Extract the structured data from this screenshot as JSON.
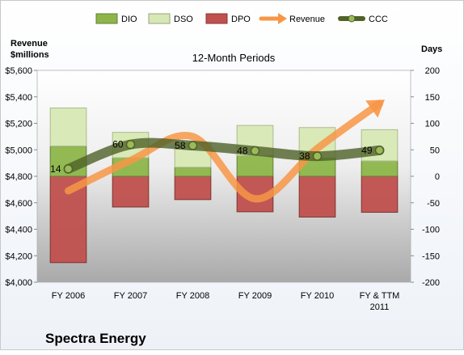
{
  "chart_data": {
    "type": "bar",
    "title": "12-Month Periods",
    "company": "Spectra Energy",
    "categories": [
      [
        "FY 2006"
      ],
      [
        "FY 2007"
      ],
      [
        "FY 2008"
      ],
      [
        "FY 2009"
      ],
      [
        "FY 2010"
      ],
      [
        "FY & TTM",
        "2011"
      ]
    ],
    "left_axis": {
      "label": [
        "Revenue",
        "$millions"
      ],
      "ylim": [
        4000,
        5600
      ],
      "ticks": [
        4000,
        4200,
        4400,
        4600,
        4800,
        5000,
        5200,
        5400,
        5600
      ],
      "tick_labels": [
        "$4,000",
        "$4,200",
        "$4,400",
        "$4,600",
        "$4,800",
        "$5,000",
        "$5,200",
        "$5,400",
        "$5,600"
      ]
    },
    "right_axis": {
      "label": "Days",
      "ylim": [
        -200,
        200
      ],
      "ticks": [
        -200,
        -150,
        -100,
        -50,
        0,
        50,
        100,
        150,
        200
      ],
      "tick_labels": [
        "-200",
        "-150",
        "-100",
        "-50",
        "0",
        "50",
        "100",
        "150",
        "200"
      ]
    },
    "series": [
      {
        "name": "DIO",
        "axis": "right",
        "kind": "stacked-bar",
        "color": "#8db54a",
        "values": [
          57,
          35,
          17,
          39,
          35,
          29
        ]
      },
      {
        "name": "DSO",
        "axis": "right",
        "kind": "stacked-bar",
        "color": "#d7e8b4",
        "values": [
          72,
          48,
          45,
          57,
          57,
          59
        ]
      },
      {
        "name": "DPO",
        "axis": "right",
        "kind": "stacked-bar",
        "color": "#c0504d",
        "values": [
          -163,
          -58,
          -44,
          -67,
          -77,
          -68
        ]
      },
      {
        "name": "Revenue",
        "axis": "left",
        "kind": "line",
        "color": "#f79646",
        "values": [
          4690,
          4920,
          5100,
          4630,
          5010,
          5350
        ]
      },
      {
        "name": "CCC",
        "axis": "right",
        "kind": "line",
        "color": "#4f6228",
        "values": [
          14,
          60,
          58,
          48,
          38,
          49
        ]
      }
    ],
    "data_labels": [
      "14",
      "60",
      "58",
      "48",
      "38",
      "49"
    ],
    "legend": {
      "position": "top",
      "items": [
        "DIO",
        "DSO",
        "DPO",
        "Revenue",
        "CCC"
      ]
    },
    "grid": false
  }
}
